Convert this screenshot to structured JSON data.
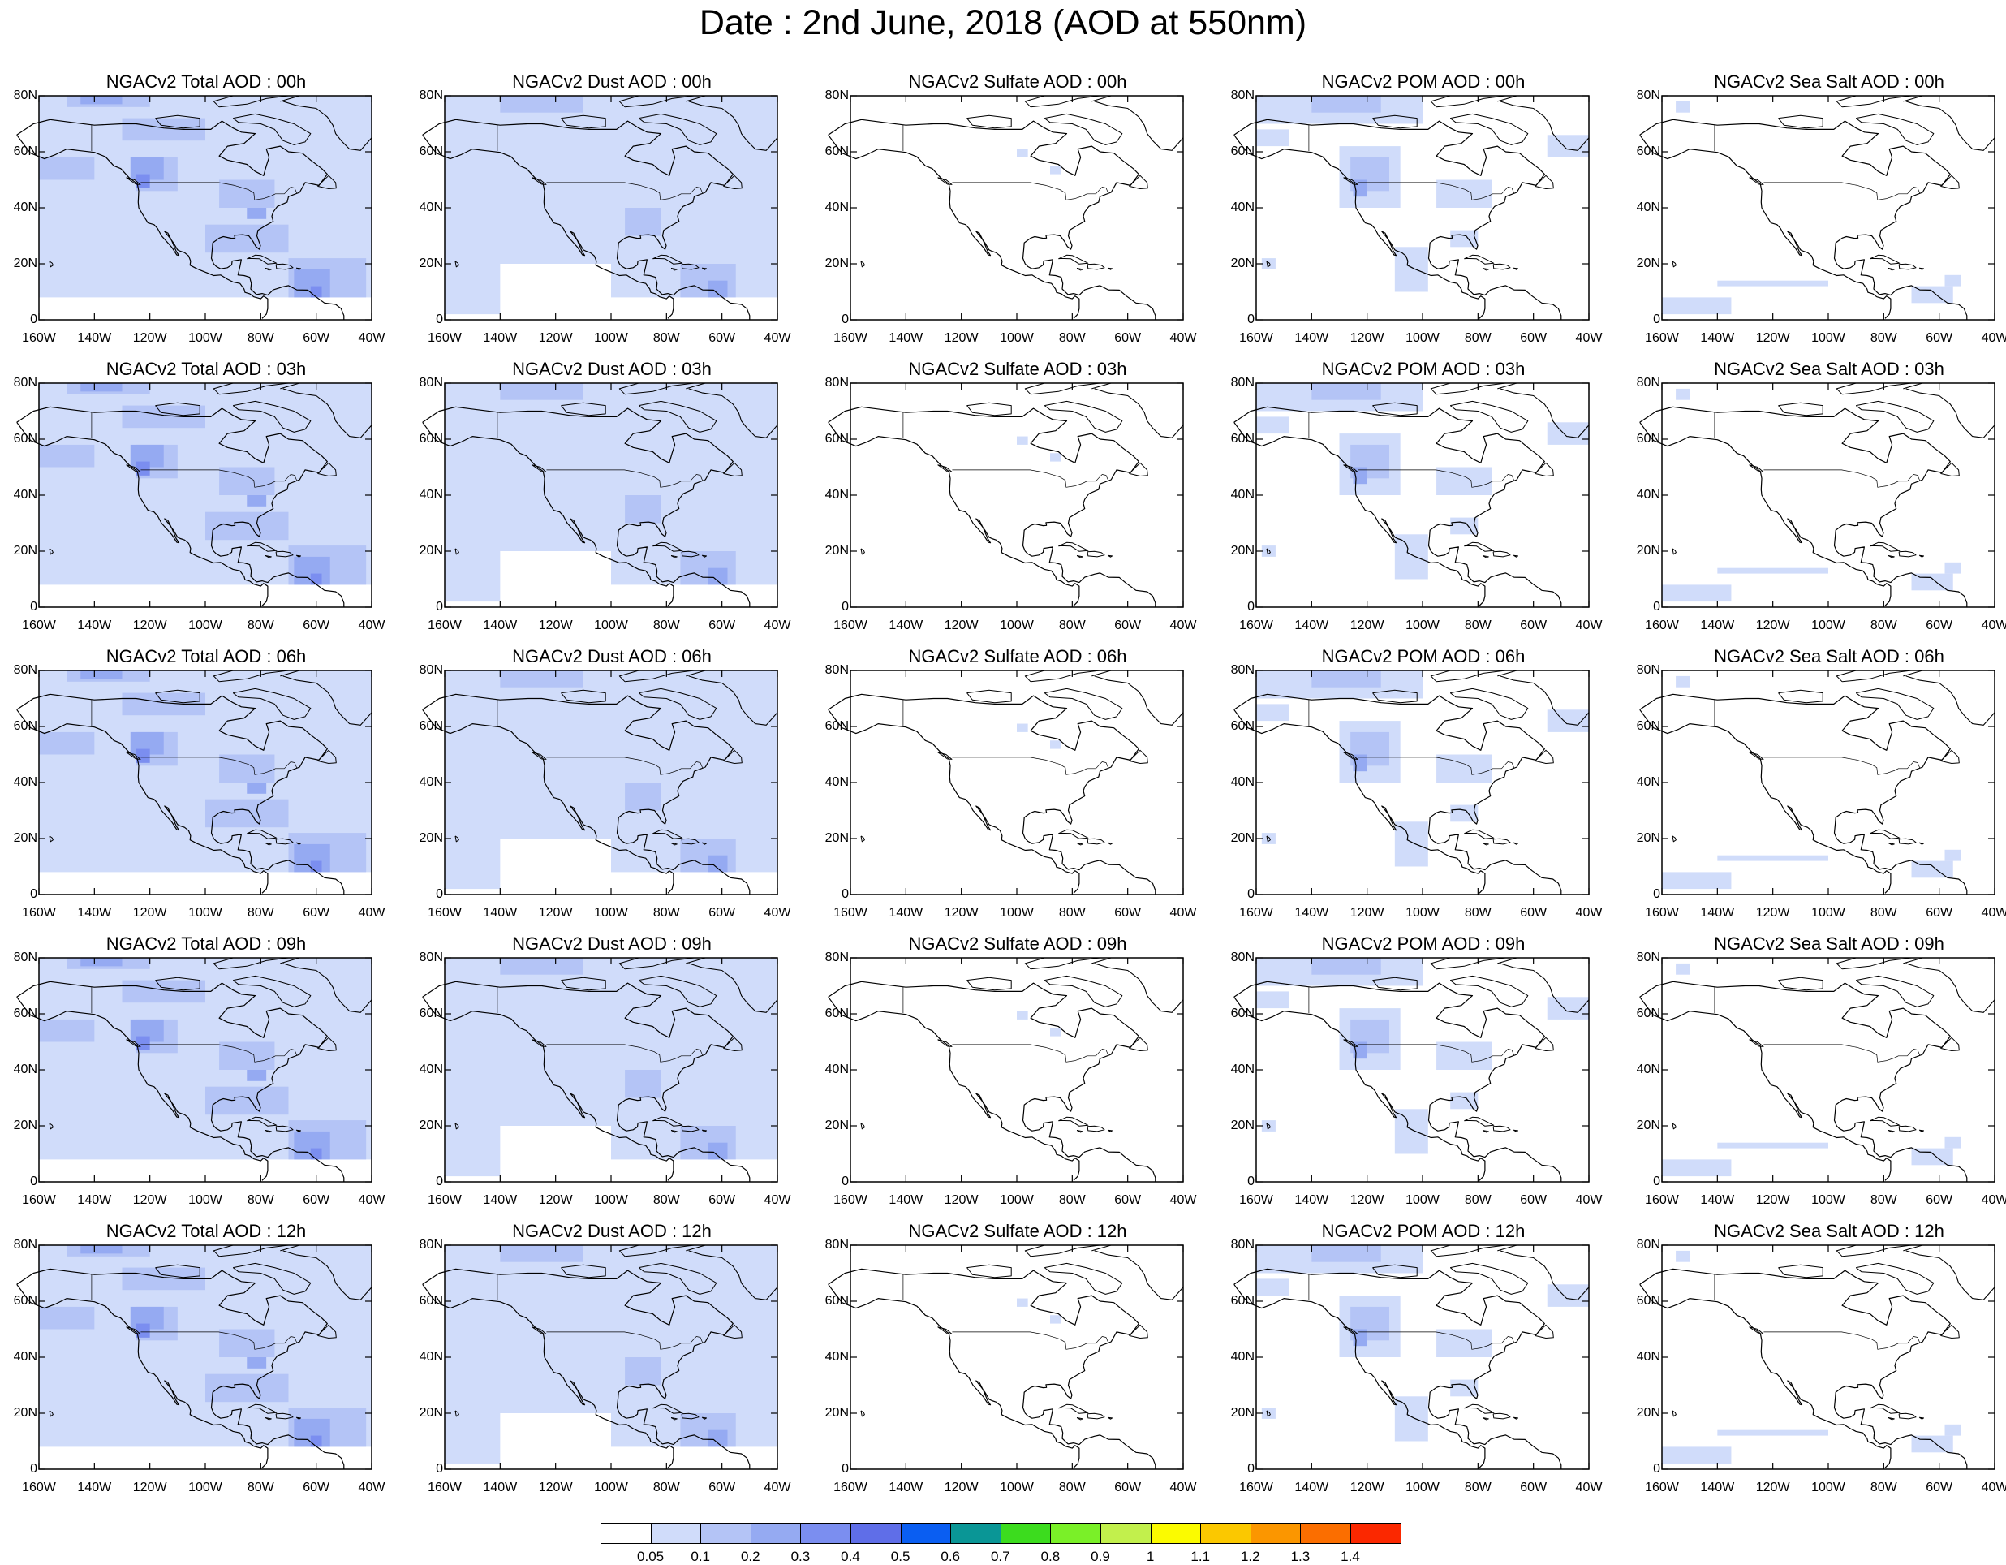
{
  "title": "Date : 2nd June, 2018 (AOD at 550nm)",
  "map_extent": {
    "lon_min": -160,
    "lon_max": -40,
    "lat_min": 0,
    "lat_max": 80
  },
  "y_ticks": [
    "80N",
    "60N",
    "40N",
    "20N",
    "0"
  ],
  "x_ticks": [
    "160W",
    "140W",
    "120W",
    "100W",
    "80W",
    "60W",
    "40W"
  ],
  "panel_titles": [
    [
      "NGACv2 Total AOD : 00h",
      "NGACv2 Dust AOD : 00h",
      "NGACv2 Sulfate AOD : 00h",
      "NGACv2 POM AOD : 00h",
      "NGACv2 Sea Salt AOD : 00h"
    ],
    [
      "NGACv2 Total AOD : 03h",
      "NGACv2 Dust AOD : 03h",
      "NGACv2 Sulfate AOD : 03h",
      "NGACv2 POM AOD : 03h",
      "NGACv2 Sea Salt AOD : 03h"
    ],
    [
      "NGACv2 Total AOD : 06h",
      "NGACv2 Dust AOD : 06h",
      "NGACv2 Sulfate AOD : 06h",
      "NGACv2 POM AOD : 06h",
      "NGACv2 Sea Salt AOD : 06h"
    ],
    [
      "NGACv2 Total AOD : 09h",
      "NGACv2 Dust AOD : 09h",
      "NGACv2 Sulfate AOD : 09h",
      "NGACv2 POM AOD : 09h",
      "NGACv2 Sea Salt  AOD : 09h"
    ],
    [
      "NGACv2 Total AOD  : 12h",
      "NGACv2 Dust AOD : 12h",
      "NGACv2 Sulfate AOD : 12h",
      "NGACv2 POM  AOD : 12h",
      "NGACv2 Sea Salt  AOD : 12h"
    ]
  ],
  "colorbar": {
    "labels": [
      "0.05",
      "0.1",
      "0.2",
      "0.3",
      "0.4",
      "0.5",
      "0.6",
      "0.7",
      "0.8",
      "0.9",
      "1",
      "1.1",
      "1.2",
      "1.3",
      "1.4"
    ],
    "colors": [
      "#ffffff",
      "#d0dcfa",
      "#b4c4f6",
      "#95aaf2",
      "#7b8ef0",
      "#5f6ee8",
      "#0a5ef2",
      "#0a9696",
      "#3cdc1e",
      "#7af028",
      "#c2f04c",
      "#fbfb00",
      "#fbc800",
      "#fb9600",
      "#fb6e00",
      "#fb2800"
    ]
  },
  "colors": {
    "coast": "#000000",
    "ocean": "#ffffff",
    "aod_low": "#d0dcfa",
    "aod_mid": "#b4c4f6",
    "aod_high": "#7b8ef0"
  }
}
